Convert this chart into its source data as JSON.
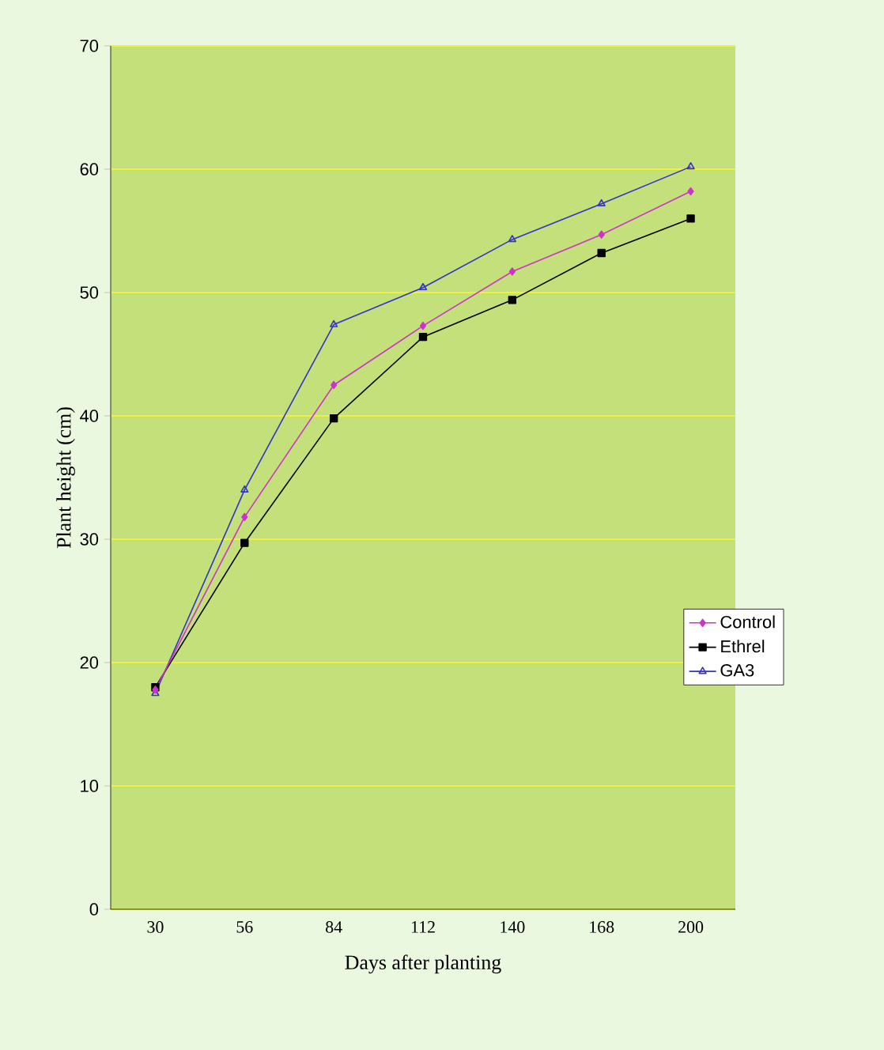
{
  "chart_data": {
    "type": "line",
    "xlabel": "Days after planting",
    "ylabel": "Plant height (cm)",
    "categories": [
      "30",
      "56",
      "84",
      "112",
      "140",
      "168",
      "200"
    ],
    "ylim": [
      0,
      70
    ],
    "yticks": [
      0,
      10,
      20,
      30,
      40,
      50,
      60,
      70
    ],
    "grid": "y",
    "legend": "right",
    "line_style": "solid",
    "series": [
      {
        "name": "Control",
        "color": "#cc33cc",
        "marker": "diamond",
        "values": [
          17.8,
          31.8,
          42.5,
          47.3,
          51.7,
          54.7,
          58.2
        ]
      },
      {
        "name": "Ethrel",
        "color": "#000000",
        "marker": "square",
        "values": [
          18.0,
          29.7,
          39.8,
          46.4,
          49.4,
          53.2,
          56.0
        ]
      },
      {
        "name": "GA3",
        "color": "#3333cc",
        "marker": "triangle",
        "values": [
          17.5,
          34.0,
          47.4,
          50.4,
          54.3,
          57.2,
          60.2
        ]
      }
    ]
  }
}
